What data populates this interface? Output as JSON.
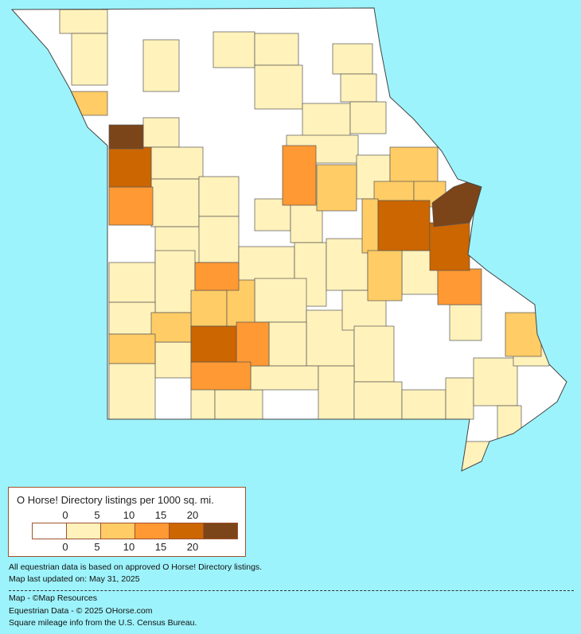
{
  "map": {
    "region": "Missouri counties",
    "background_color": "#9df3fb"
  },
  "legend": {
    "title": "O Horse! Directory listings per 1000 sq. mi.",
    "top_ticks": [
      "0",
      "5",
      "10",
      "15",
      "20"
    ],
    "bottom_ticks": [
      "0",
      "5",
      "10",
      "15",
      "20"
    ],
    "colors": [
      "#ffffff",
      "#fff2bb",
      "#ffcc66",
      "#ff9933",
      "#cc6600",
      "#7b4519"
    ]
  },
  "notes": {
    "data_basis": "All equestrian data is based on approved O Horse! Directory listings.",
    "updated": "Map last updated on: May 31, 2025"
  },
  "credits": {
    "map": "Map - ©Map Resources",
    "data": "Equestrian Data - © 2025 OHorse.com",
    "mileage": "Square mileage info from the U.S. Census Bureau."
  }
}
